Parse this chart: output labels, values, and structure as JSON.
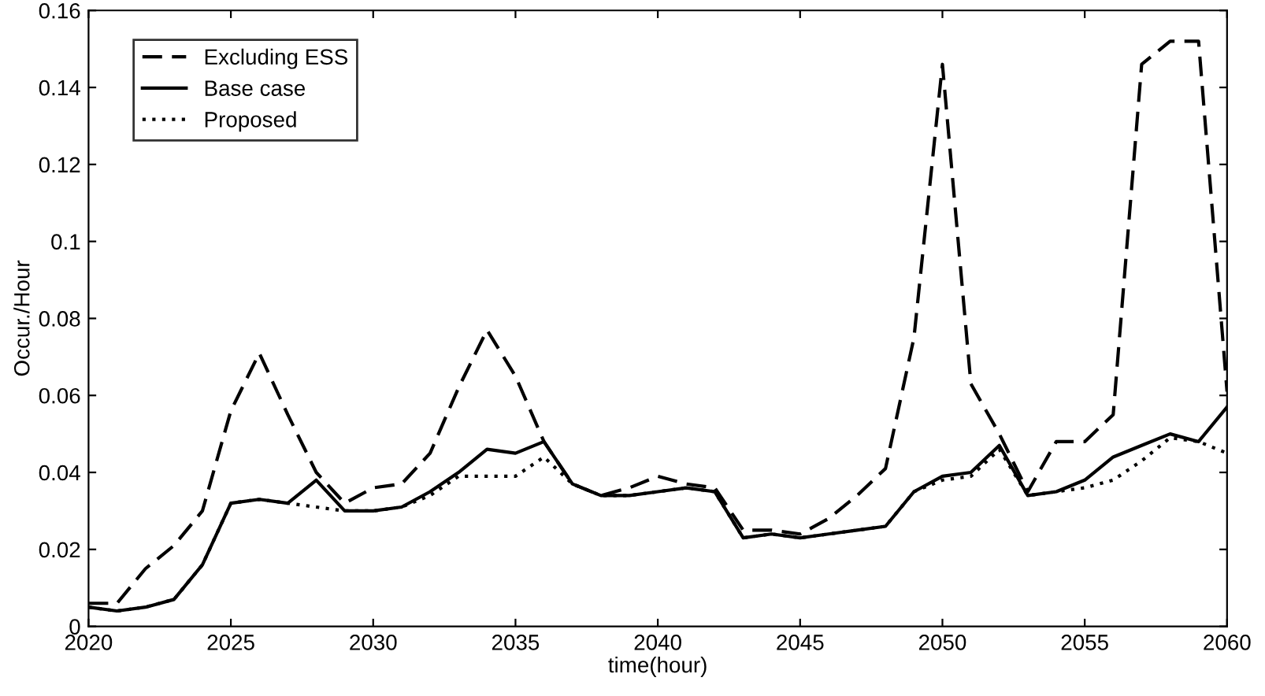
{
  "chart_data": {
    "type": "line",
    "xlabel": "time(hour)",
    "ylabel": "Occur./Hour",
    "x": [
      2020,
      2021,
      2022,
      2023,
      2024,
      2025,
      2026,
      2027,
      2028,
      2029,
      2030,
      2031,
      2032,
      2033,
      2034,
      2035,
      2036,
      2037,
      2038,
      2039,
      2040,
      2041,
      2042,
      2043,
      2044,
      2045,
      2046,
      2047,
      2048,
      2049,
      2050,
      2051,
      2052,
      2053,
      2054,
      2055,
      2056,
      2057,
      2058,
      2059,
      2060
    ],
    "series": [
      {
        "name": "Excluding ESS",
        "color": "#000000",
        "line_style": "dashed",
        "values": [
          0.006,
          0.006,
          0.015,
          0.021,
          0.03,
          0.056,
          0.071,
          0.055,
          0.04,
          0.032,
          0.036,
          0.037,
          0.045,
          0.062,
          0.077,
          0.065,
          0.048,
          0.037,
          0.034,
          0.036,
          0.039,
          0.037,
          0.036,
          0.025,
          0.025,
          0.024,
          0.028,
          0.034,
          0.041,
          0.075,
          0.146,
          0.063,
          0.05,
          0.035,
          0.048,
          0.048,
          0.055,
          0.146,
          0.152,
          0.152,
          0.061
        ]
      },
      {
        "name": "Base case",
        "color": "#000000",
        "line_style": "solid",
        "values": [
          0.005,
          0.004,
          0.005,
          0.007,
          0.016,
          0.032,
          0.033,
          0.032,
          0.038,
          0.03,
          0.03,
          0.031,
          0.035,
          0.04,
          0.046,
          0.045,
          0.048,
          0.037,
          0.034,
          0.034,
          0.035,
          0.036,
          0.035,
          0.023,
          0.024,
          0.023,
          0.024,
          0.025,
          0.026,
          0.035,
          0.039,
          0.04,
          0.047,
          0.034,
          0.035,
          0.038,
          0.044,
          0.047,
          0.05,
          0.048,
          0.057
        ]
      },
      {
        "name": "Proposed",
        "color": "#000000",
        "line_style": "dotted",
        "values": [
          0.005,
          0.004,
          0.005,
          0.007,
          0.016,
          0.032,
          0.033,
          0.032,
          0.031,
          0.03,
          0.03,
          0.031,
          0.034,
          0.039,
          0.039,
          0.039,
          0.044,
          0.037,
          0.034,
          0.034,
          0.035,
          0.036,
          0.035,
          0.023,
          0.024,
          0.023,
          0.024,
          0.025,
          0.026,
          0.035,
          0.038,
          0.039,
          0.046,
          0.034,
          0.035,
          0.036,
          0.038,
          0.043,
          0.049,
          0.048,
          0.045
        ]
      }
    ],
    "xlim": [
      2020,
      2060
    ],
    "xticks": [
      2020,
      2025,
      2030,
      2035,
      2040,
      2045,
      2050,
      2055,
      2060
    ],
    "ylim": [
      0,
      0.16
    ],
    "yticks": [
      0,
      0.02,
      0.04,
      0.06,
      0.08,
      0.1,
      0.12,
      0.14,
      0.16
    ],
    "legend": "top left",
    "grid": false,
    "marker": "none"
  }
}
